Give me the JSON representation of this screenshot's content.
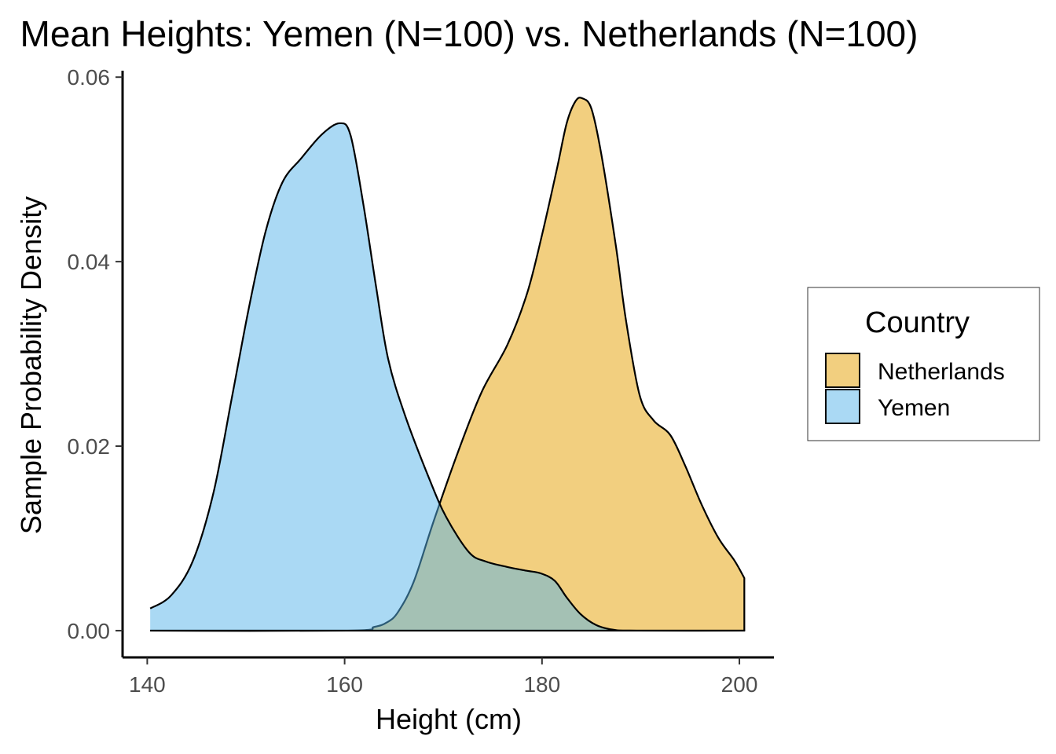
{
  "chart_data": {
    "type": "area",
    "title": "Mean Heights: Yemen (N=100) vs. Netherlands (N=100)",
    "xlabel": "Height (cm)",
    "ylabel": "Sample Probability Density",
    "xlim": [
      137.5,
      203.5
    ],
    "ylim": [
      -0.0029,
      0.0607
    ],
    "x_ticks": [
      140,
      160,
      180,
      200
    ],
    "x_tick_labels": [
      "140",
      "160",
      "180",
      "200"
    ],
    "y_ticks": [
      0,
      0.02,
      0.04,
      0.06
    ],
    "y_tick_labels": [
      "0.00",
      "0.02",
      "0.04",
      "0.06"
    ],
    "grid": false,
    "legend": {
      "title": "Country",
      "placement": "right",
      "entries": [
        {
          "label": "Netherlands",
          "color": "#e69f00"
        },
        {
          "label": "Yemen",
          "color": "#56b4e9"
        }
      ]
    },
    "fill_opacity": 0.5,
    "series": [
      {
        "name": "Netherlands",
        "color": "#e69f00",
        "x": [
          140.3,
          160.3,
          163,
          164.3,
          165.4,
          167,
          169,
          171.5,
          173.9,
          176.5,
          178.5,
          180,
          181.5,
          182.5,
          183.4,
          184.1,
          185,
          186,
          187.5,
          188.5,
          189.9,
          191.3,
          193,
          194.5,
          196.2,
          197.9,
          199.5,
          200.5
        ],
        "y": [
          0,
          0,
          0.0004,
          0.0009,
          0.002,
          0.0053,
          0.0118,
          0.0194,
          0.0259,
          0.031,
          0.0366,
          0.0429,
          0.05,
          0.055,
          0.0574,
          0.0577,
          0.0566,
          0.0517,
          0.0416,
          0.0337,
          0.0255,
          0.0228,
          0.0212,
          0.0179,
          0.0136,
          0.01,
          0.0076,
          0.0057
        ]
      },
      {
        "name": "Yemen",
        "color": "#56b4e9",
        "x": [
          140.3,
          142.4,
          144.6,
          146.7,
          148.6,
          150.3,
          152,
          153.7,
          155.6,
          157.7,
          159.5,
          160.6,
          161.9,
          163.2,
          164.4,
          166.1,
          168.6,
          170.3,
          172.6,
          174.3,
          176.5,
          178.4,
          179.9,
          181.3,
          182.5,
          183.9,
          185.5,
          187.2,
          189.6,
          200.5
        ],
        "y": [
          0.0024,
          0.0038,
          0.0075,
          0.0149,
          0.0254,
          0.035,
          0.0433,
          0.0486,
          0.0512,
          0.0538,
          0.055,
          0.0537,
          0.0462,
          0.0372,
          0.0295,
          0.0234,
          0.0164,
          0.0123,
          0.0085,
          0.0075,
          0.0069,
          0.0065,
          0.0062,
          0.0054,
          0.0036,
          0.0018,
          0.0006,
          0.0001,
          0,
          0
        ]
      }
    ]
  }
}
